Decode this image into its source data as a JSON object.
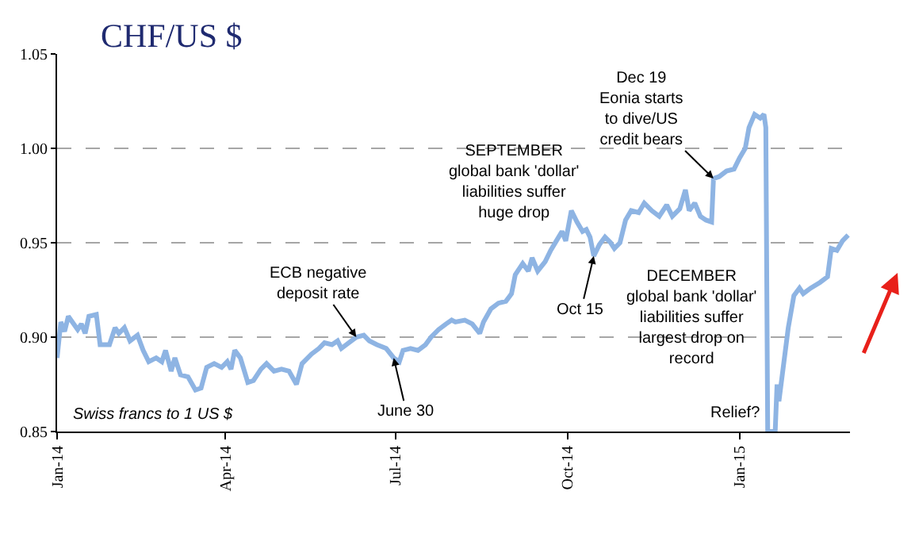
{
  "chart_data": {
    "type": "line",
    "title": "CHF/US $",
    "x": [
      "2014-01-01",
      "2014-01-03",
      "2014-01-05",
      "2014-01-07",
      "2014-01-12",
      "2014-01-14",
      "2014-01-16",
      "2014-01-18",
      "2014-01-22",
      "2014-01-24",
      "2014-01-29",
      "2014-02-01",
      "2014-02-03",
      "2014-02-06",
      "2014-02-09",
      "2014-02-13",
      "2014-02-16",
      "2014-02-19",
      "2014-02-23",
      "2014-02-26",
      "2014-02-28",
      "2014-03-03",
      "2014-03-05",
      "2014-03-08",
      "2014-03-12",
      "2014-03-16",
      "2014-03-19",
      "2014-03-22",
      "2014-03-26",
      "2014-03-30",
      "2014-04-02",
      "2014-04-04",
      "2014-04-06",
      "2014-04-09",
      "2014-04-13",
      "2014-04-16",
      "2014-04-20",
      "2014-04-23",
      "2014-04-27",
      "2014-05-01",
      "2014-05-05",
      "2014-05-09",
      "2014-05-12",
      "2014-05-17",
      "2014-05-21",
      "2014-05-24",
      "2014-05-28",
      "2014-05-31",
      "2014-06-02",
      "2014-06-06",
      "2014-06-10",
      "2014-06-14",
      "2014-06-17",
      "2014-06-21",
      "2014-06-26",
      "2014-06-30",
      "2014-07-03",
      "2014-07-05",
      "2014-07-09",
      "2014-07-13",
      "2014-07-17",
      "2014-07-20",
      "2014-07-24",
      "2014-07-28",
      "2014-07-31",
      "2014-08-02",
      "2014-08-07",
      "2014-08-11",
      "2014-08-15",
      "2014-08-17",
      "2014-08-21",
      "2014-08-25",
      "2014-08-29",
      "2014-09-01",
      "2014-09-03",
      "2014-09-07",
      "2014-09-10",
      "2014-09-12",
      "2014-09-15",
      "2014-09-19",
      "2014-09-22",
      "2014-09-25",
      "2014-09-28",
      "2014-09-30",
      "2014-10-03",
      "2014-10-06",
      "2014-10-09",
      "2014-10-11",
      "2014-10-13",
      "2014-10-15",
      "2014-10-18",
      "2014-10-21",
      "2014-10-24",
      "2014-10-26",
      "2014-10-29",
      "2014-11-01",
      "2014-11-04",
      "2014-11-08",
      "2014-11-11",
      "2014-11-15",
      "2014-11-19",
      "2014-11-23",
      "2014-11-26",
      "2014-11-30",
      "2014-12-03",
      "2014-12-05",
      "2014-12-08",
      "2014-12-11",
      "2014-12-14",
      "2014-12-17",
      "2014-12-18",
      "2014-12-21",
      "2014-12-25",
      "2014-12-29",
      "2015-01-01",
      "2015-01-04",
      "2015-01-06",
      "2015-01-09",
      "2015-01-12",
      "2015-01-14",
      "2015-01-15",
      "2015-01-16",
      "2015-01-20",
      "2015-01-21",
      "2015-01-22",
      "2015-01-27",
      "2015-01-30",
      "2015-02-02",
      "2015-02-04",
      "2015-02-08",
      "2015-02-13",
      "2015-02-17",
      "2015-02-19",
      "2015-02-22",
      "2015-02-25",
      "2015-02-28"
    ],
    "series": [
      {
        "color": "#8eb4e3",
        "values": [
          0.889,
          0.908,
          0.903,
          0.911,
          0.904,
          0.907,
          0.902,
          0.911,
          0.912,
          0.896,
          0.896,
          0.905,
          0.902,
          0.905,
          0.898,
          0.901,
          0.893,
          0.887,
          0.889,
          0.887,
          0.893,
          0.882,
          0.889,
          0.88,
          0.879,
          0.872,
          0.873,
          0.884,
          0.886,
          0.884,
          0.887,
          0.883,
          0.893,
          0.889,
          0.876,
          0.877,
          0.883,
          0.886,
          0.882,
          0.883,
          0.882,
          0.875,
          0.886,
          0.891,
          0.894,
          0.897,
          0.896,
          0.898,
          0.894,
          0.897,
          0.9,
          0.901,
          0.898,
          0.896,
          0.894,
          0.889,
          0.887,
          0.893,
          0.894,
          0.893,
          0.896,
          0.9,
          0.904,
          0.907,
          0.909,
          0.908,
          0.909,
          0.907,
          0.902,
          0.908,
          0.915,
          0.918,
          0.919,
          0.923,
          0.933,
          0.939,
          0.935,
          0.942,
          0.935,
          0.94,
          0.946,
          0.951,
          0.956,
          0.951,
          0.967,
          0.961,
          0.956,
          0.957,
          0.953,
          0.943,
          0.949,
          0.953,
          0.95,
          0.947,
          0.95,
          0.962,
          0.967,
          0.966,
          0.971,
          0.967,
          0.964,
          0.97,
          0.964,
          0.968,
          0.978,
          0.967,
          0.971,
          0.964,
          0.962,
          0.961,
          0.984,
          0.985,
          0.988,
          0.989,
          0.995,
          1.0,
          1.011,
          1.018,
          1.016,
          1.018,
          1.011,
          0.85,
          0.85,
          0.875,
          0.866,
          0.905,
          0.922,
          0.926,
          0.923,
          0.926,
          0.929,
          0.932,
          0.947,
          0.946,
          0.951,
          0.954
        ]
      }
    ],
    "xlim": [
      "2014-01-01",
      "2015-03-01"
    ],
    "xticks": [
      {
        "value": "2014-01-01",
        "label": "Jan-14"
      },
      {
        "value": "2014-04-01",
        "label": "Apr-14"
      },
      {
        "value": "2014-07-01",
        "label": "Jul-14"
      },
      {
        "value": "2014-10-01",
        "label": "Oct-14"
      },
      {
        "value": "2015-01-01",
        "label": "Jan-15"
      }
    ],
    "ylim": [
      0.85,
      1.05
    ],
    "yticks": [
      {
        "value": 0.85,
        "label": "0.85"
      },
      {
        "value": 0.9,
        "label": "0.90"
      },
      {
        "value": 0.95,
        "label": "0.95"
      },
      {
        "value": 1.0,
        "label": "1.00"
      },
      {
        "value": 1.05,
        "label": "1.05"
      }
    ],
    "grid": "y",
    "marker": "none",
    "line_style": "solid",
    "annotations": [
      {
        "text": "ECB negative\ndeposit rate",
        "x": "2014-06-10",
        "y": 0.9
      },
      {
        "text": "June 30",
        "x": "2014-06-30",
        "y": 0.889
      },
      "SEPTEMBER\nglobal bank 'dollar'\nliabilities suffer\nhuge drop",
      {
        "text": "Oct 15",
        "x": "2014-10-15",
        "y": 0.943
      },
      {
        "text": "Dec 19\nEonia starts\nto dive/US\ncredit bears",
        "x": "2014-12-18",
        "y": 0.984
      },
      "DECEMBER\nglobal bank 'dollar'\nliabilities suffer\nlargest drop on\nrecord",
      "Relief?",
      "Swiss francs to 1 US $"
    ]
  }
}
